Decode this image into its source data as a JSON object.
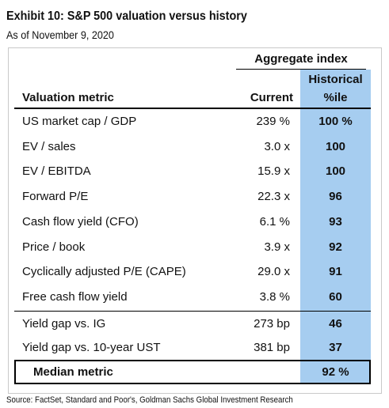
{
  "title": "Exhibit 10: S&P 500 valuation versus history",
  "subtitle": "As of November 9, 2020",
  "source": "Source: FactSet, Standard and Poor's, Goldman Sachs Global Investment Research",
  "colors": {
    "highlight_column": "#a6cdf0",
    "rules": "#000000",
    "frame": "#c9c9c9"
  },
  "chart_data": {
    "type": "table",
    "group_header": "Aggregate index",
    "columns": {
      "metric": "Valuation metric",
      "current": "Current",
      "historical_line1": "Historical",
      "historical_line2": "%ile"
    },
    "rows": [
      {
        "metric": "US market cap / GDP",
        "current": "239 %",
        "percentile": "100 %"
      },
      {
        "metric": "EV / sales",
        "current": "3.0 x",
        "percentile": "100"
      },
      {
        "metric": "EV / EBITDA",
        "current": "15.9 x",
        "percentile": "100"
      },
      {
        "metric": "Forward P/E",
        "current": "22.3 x",
        "percentile": "96"
      },
      {
        "metric": "Cash flow yield (CFO)",
        "current": "6.1 %",
        "percentile": "93"
      },
      {
        "metric": "Price / book",
        "current": "3.9 x",
        "percentile": "92"
      },
      {
        "metric": "Cyclically adjusted P/E (CAPE)",
        "current": "29.0 x",
        "percentile": "91"
      },
      {
        "metric": "Free cash flow yield",
        "current": "3.8 %",
        "percentile": "60"
      },
      {
        "metric": "Yield gap vs. IG",
        "current": "273 bp",
        "percentile": "46"
      },
      {
        "metric": "Yield gap vs. 10-year UST",
        "current": "381 bp",
        "percentile": "37"
      }
    ],
    "median": {
      "label": "Median metric",
      "percentile": "92 %"
    }
  }
}
